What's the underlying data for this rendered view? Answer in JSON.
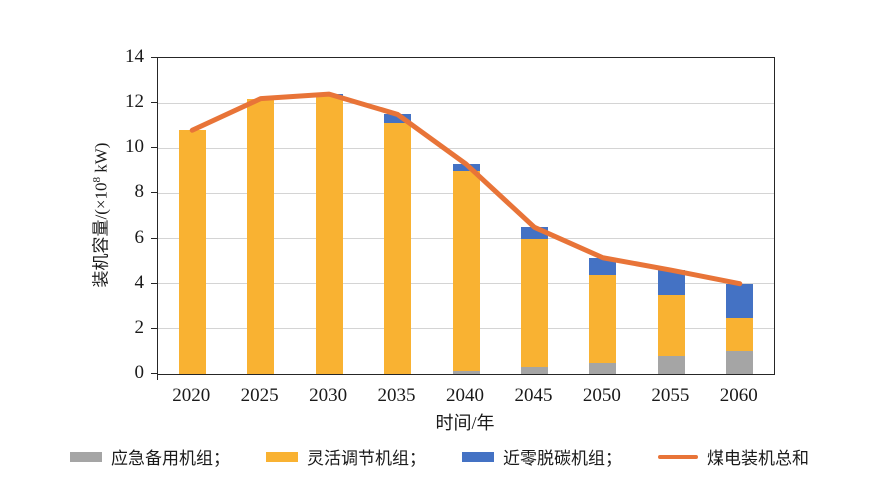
{
  "chart_data": {
    "type": "bar",
    "subtype": "stacked-bars-with-line-overlay",
    "title": "",
    "xlabel": "时间/年",
    "ylabel": "装机容量/(×10⁸ kW)",
    "ylabel_parts": {
      "prefix": "装机容量/(×10",
      "sup": "8",
      "suffix": " kW)"
    },
    "categories": [
      "2020",
      "2025",
      "2030",
      "2035",
      "2040",
      "2045",
      "2050",
      "2055",
      "2060"
    ],
    "series": [
      {
        "name": "应急备用机组",
        "type": "bar",
        "color": "#A5A5A5",
        "values": [
          0,
          0,
          0,
          0,
          0.15,
          0.3,
          0.5,
          0.8,
          1.0
        ]
      },
      {
        "name": "灵活调节机组",
        "type": "bar",
        "color": "#F9B232",
        "values": [
          10.8,
          12.2,
          12.3,
          11.1,
          8.85,
          5.7,
          3.9,
          2.7,
          1.5
        ]
      },
      {
        "name": "近零脱碳机组",
        "type": "bar",
        "color": "#4472C4",
        "values": [
          0,
          0,
          0.1,
          0.4,
          0.3,
          0.5,
          0.75,
          1.1,
          1.5
        ]
      },
      {
        "name": "煤电装机总和",
        "type": "line",
        "color": "#E87438",
        "values": [
          10.8,
          12.2,
          12.4,
          11.5,
          9.3,
          6.5,
          5.15,
          4.6,
          4.0
        ]
      }
    ],
    "legend_labels": [
      "应急备用机组；",
      "灵活调节机组；",
      "近零脱碳机组；",
      "煤电装机总和"
    ],
    "legend_position": "bottom",
    "ylim": [
      0,
      14
    ],
    "yticks": [
      0,
      2,
      4,
      6,
      8,
      10,
      12,
      14
    ],
    "grid": "horizontal",
    "colors": {
      "emergency_backup_gray": "#A5A5A5",
      "flexible_regulation_gold": "#F9B232",
      "near_zero_decarb_blue": "#4472C4",
      "total_line_orange": "#E87438",
      "gridline": "#D4D4D4",
      "frame": "#262626"
    }
  }
}
